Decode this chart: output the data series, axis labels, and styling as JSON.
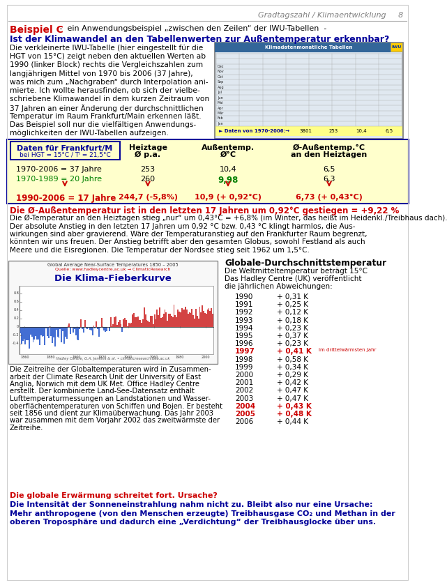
{
  "header_text": "Gradtagszahl / Klimaentwicklung",
  "page_number": "8",
  "header_color": "#808080",
  "title_bold": "Beispiel C",
  "title_bold_color": "#CC0000",
  "title_rest": " -  ein Anwendungsbeispiel „zwischen den Zeilen“ der IWU-Tabellen  -",
  "subtitle": "Ist der Klimawandel an den Tabellenwerten zur Außentemperatur erkennbar?",
  "subtitle_color": "#000099",
  "table_header_col1": "Daten für Frankfurt/M",
  "table_header_sub": "bei HGT = 15°C / Tᴵ = 21,5°C",
  "row1_label": "1970-2006 = 37 Jahre",
  "row1_col2": "253",
  "row1_col3": "10,4",
  "row1_col4": "6,5",
  "row2_label": "1970-1989 = 20 Jahre",
  "row2_col2": "260",
  "row2_col3": "9,98",
  "row2_col4": "6,3",
  "row2_color": "#008000",
  "row3_label": "1990-2006 = 17 Jahre",
  "row3_col2": "244,7 (-5,8%)",
  "row3_col3": "10,9 (+ 0,92°C)",
  "row3_col4": "6,73 (+ 0,43°C)",
  "row3_color": "#CC0000",
  "arrow_color": "#CC0000",
  "conclusion_bold": "Die Ø-Außentemperatur ist in den letzten 17 Jahren um 0,92°C gestiegen = +9,22 %",
  "conclusion_bold_color": "#CC0000",
  "global_temp_title": "Globale-Durchschnittstemperatur",
  "global_temp_data": [
    [
      "1990",
      "+ 0,31 K"
    ],
    [
      "1991",
      "+ 0,25 K"
    ],
    [
      "1992",
      "+ 0,12 K"
    ],
    [
      "1993",
      "+ 0,18 K"
    ],
    [
      "1994",
      "+ 0,23 K"
    ],
    [
      "1995",
      "+ 0,37 K"
    ],
    [
      "1996",
      "+ 0,23 K"
    ],
    [
      "1997",
      "+ 0,41 K"
    ],
    [
      "1998",
      "+ 0,58 K"
    ],
    [
      "1999",
      "+ 0,34 K"
    ],
    [
      "2000",
      "+ 0,29 K"
    ],
    [
      "2001",
      "+ 0,42 K"
    ],
    [
      "2002",
      "+ 0,47 K"
    ],
    [
      "2003",
      "+ 0,47 K"
    ],
    [
      "2004",
      "+ 0,43 K"
    ],
    [
      "2005",
      "+ 0,48 K"
    ],
    [
      "2006",
      "+ 0,44 K"
    ]
  ],
  "highlighted_rows": [
    7,
    14,
    15
  ],
  "final_bold1": "Die globale Erwärmung schreitet fort. Ursache?",
  "final_bold1_color": "#CC0000",
  "final_bold2": "Die Intensität der Sonneneinstrahlung nahm nicht zu. Bleibt also nur eine Ursache:",
  "final_bold2_color": "#000099",
  "final_bold3a": "Mehr anthropogene (von den Menschen erzeugte) Treibhausgase CO₂ und Methan in der",
  "final_bold3b": "oberen Troposphäre und dadurch eine „Verdichtung“ der Treibhausglocke über uns.",
  "final_bold3_color": "#000099",
  "bg_color": "#ffffff",
  "table_bg": "#ffffcc",
  "table_border": "#000099"
}
